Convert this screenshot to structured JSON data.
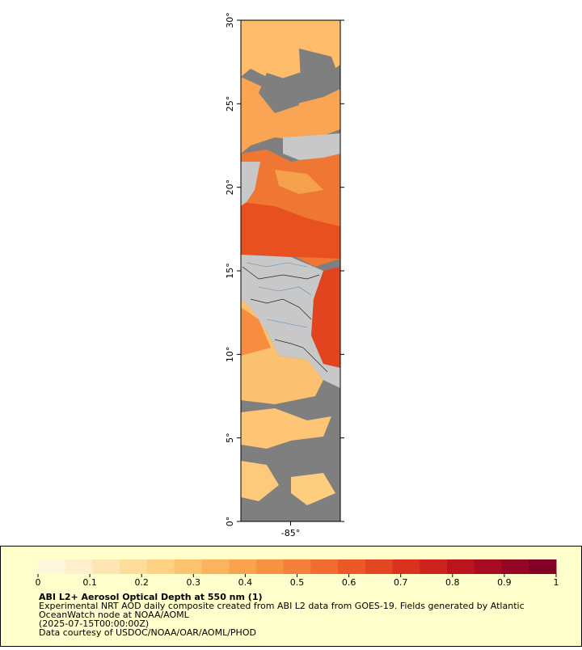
{
  "map": {
    "ylim": [
      0,
      30
    ],
    "yticks": [
      {
        "value": 0,
        "label": "0°"
      },
      {
        "value": 5,
        "label": "5°"
      },
      {
        "value": 10,
        "label": "10°"
      },
      {
        "value": 15,
        "label": "15°"
      },
      {
        "value": 20,
        "label": "20°"
      },
      {
        "value": 25,
        "label": "25°"
      },
      {
        "value": 30,
        "label": "30°"
      }
    ],
    "xlim": [
      -88,
      -82
    ],
    "xticks": [
      {
        "value": -85,
        "label": "-85°"
      }
    ]
  },
  "legend": {
    "title": "ABI L2+ Aerosol Optical Depth at 550 nm (1)",
    "lines": [
      "Experimental NRT AOD daily composite created from ABI L2 data from GOES-19. Fields generated by Atlantic",
      "OceanWatch node at NOAA/AOML",
      "(2025-07-15T00:00:00Z)",
      "Data courtesy of USDOC/NOAA/OAR/AOML/PHOD"
    ],
    "colorbar": {
      "range": [
        0,
        1
      ],
      "ticks": [
        0,
        0.1,
        0.2,
        0.3,
        0.4,
        0.5,
        0.6,
        0.7,
        0.8,
        0.9,
        1
      ],
      "colors": [
        "#fff6de",
        "#ffefcc",
        "#fee6b4",
        "#fedc9c",
        "#fed184",
        "#fdc470",
        "#fcb35e",
        "#fba24f",
        "#f99143",
        "#f67f39",
        "#f26c30",
        "#ec5828",
        "#e44522",
        "#da321e",
        "#cd221b",
        "#bc141e",
        "#a90c22",
        "#950624",
        "#820026"
      ]
    }
  }
}
